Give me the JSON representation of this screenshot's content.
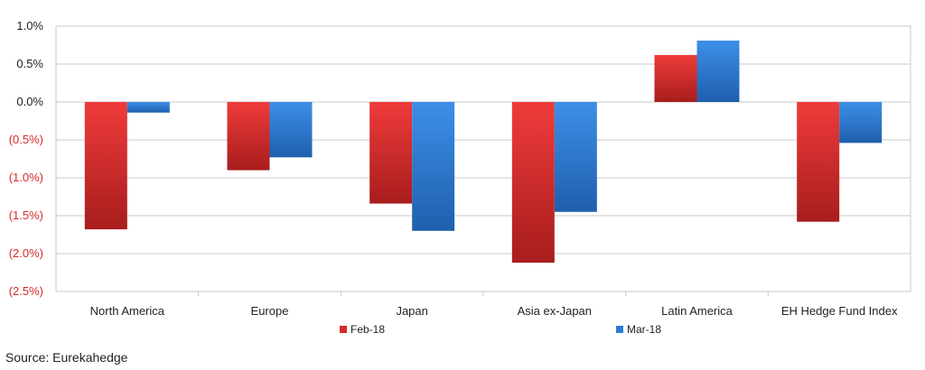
{
  "chart_data": {
    "type": "bar",
    "categories": [
      "North America",
      "Europe",
      "Japan",
      "Asia ex-Japan",
      "Latin America",
      "EH Hedge Fund Index"
    ],
    "series": [
      {
        "name": "Feb-18",
        "values": [
          -1.68,
          -0.9,
          -1.34,
          -2.12,
          0.62,
          -1.58
        ],
        "color": "#d42a2a"
      },
      {
        "name": "Mar-18",
        "values": [
          -0.14,
          -0.73,
          -1.7,
          -1.45,
          0.81,
          -0.54
        ],
        "color": "#2e7bd4"
      }
    ],
    "yticks": [
      1.0,
      0.5,
      0.0,
      -0.5,
      -1.0,
      -1.5,
      -2.0,
      -2.5
    ],
    "ytick_labels": [
      "1.0%",
      "0.5%",
      "0.0%",
      "(0.5%)",
      "(1.0%)",
      "(1.5%)",
      "(2.0%)",
      "(2.5%)"
    ],
    "ylim": [
      -2.5,
      1.0
    ],
    "grid": true,
    "legend_position": "bottom-center",
    "negative_tick_color": "#d42a2a",
    "positive_tick_color": "#222222"
  },
  "source": "Source: Eurekahedge"
}
